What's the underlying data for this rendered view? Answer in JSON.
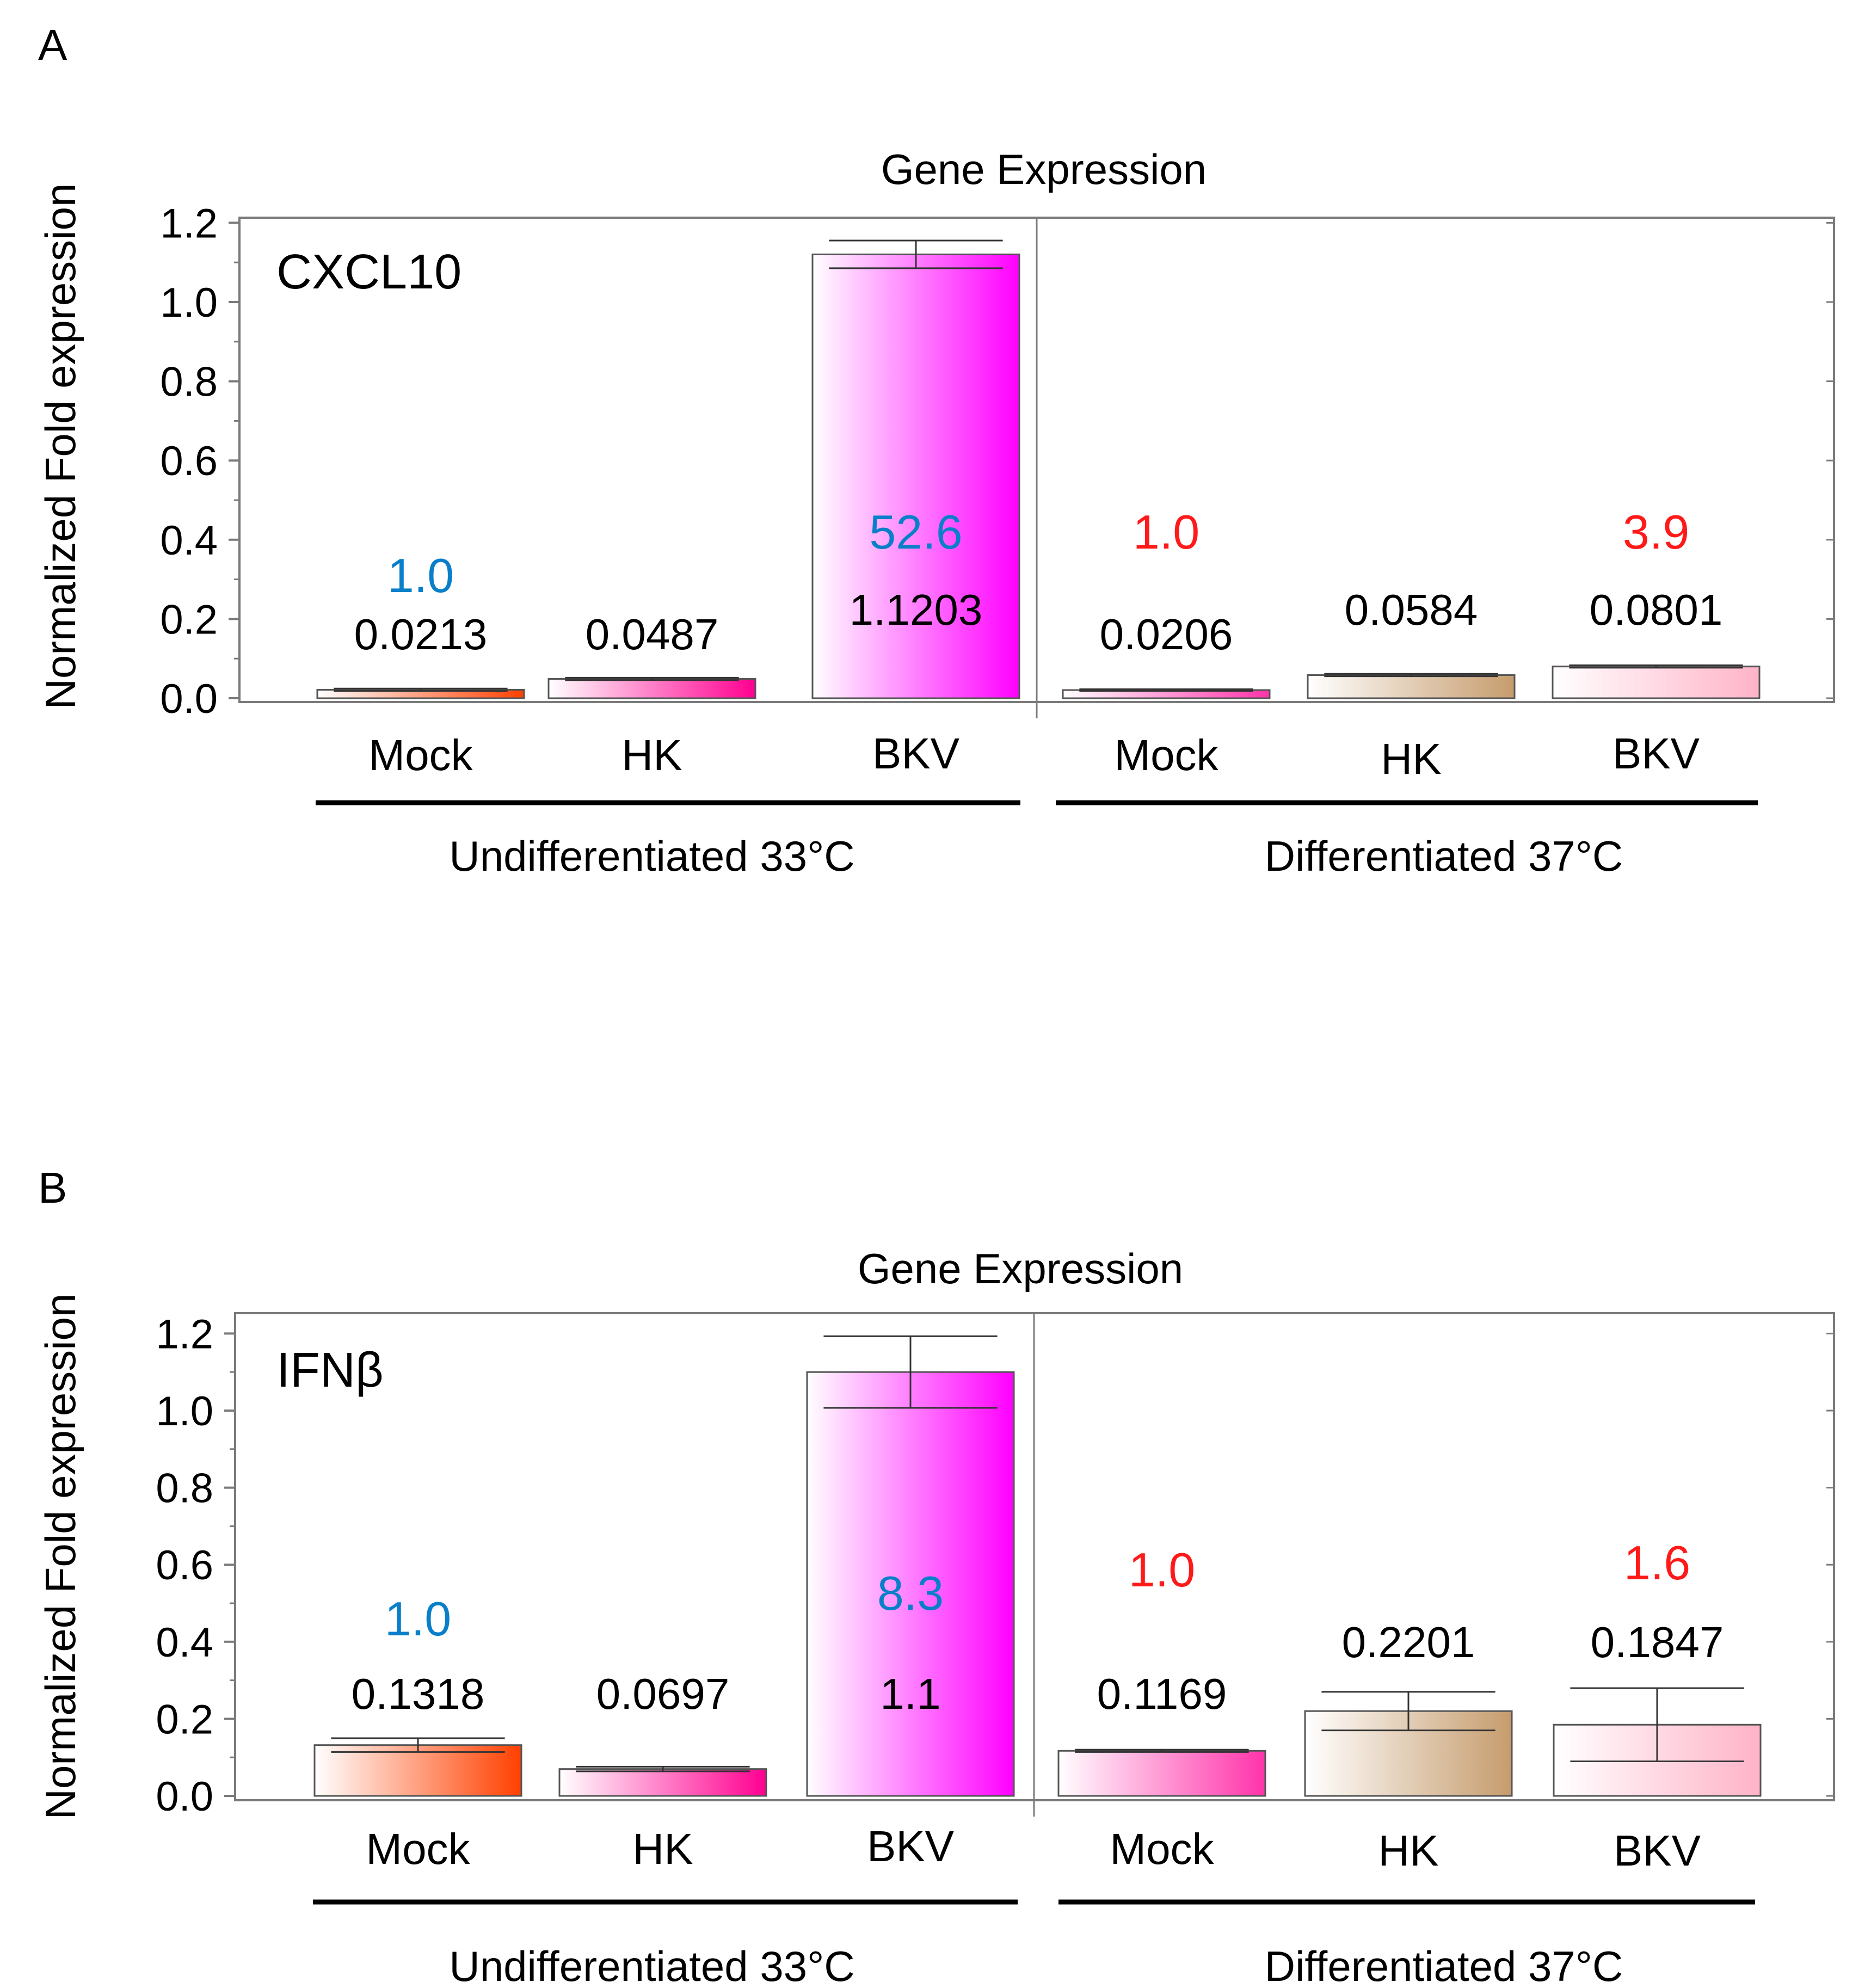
{
  "figure": {
    "panels": [
      {
        "panel_label": "A"
      },
      {
        "panel_label": "B"
      }
    ]
  },
  "chart_data": [
    {
      "type": "bar",
      "panel_label": "A",
      "title": "Gene Expression",
      "gene": "CXCL10",
      "ylabel": "Normalized Fold expression",
      "ylim": [
        0,
        1.25
      ],
      "yticks": [
        0.0,
        0.2,
        0.4,
        0.6,
        0.8,
        1.0,
        1.2
      ],
      "ytick_labels": [
        "0.0",
        "0.2",
        "0.4",
        "0.6",
        "0.8",
        "1.0",
        "1.2"
      ],
      "categories": [
        "Mock",
        "HK",
        "BKV",
        "Mock",
        "HK",
        "BKV"
      ],
      "values": [
        0.0213,
        0.0487,
        1.1203,
        0.0206,
        0.0584,
        0.0801
      ],
      "value_labels": [
        "0.0213",
        "0.0487",
        "1.1203",
        "0.0206",
        "0.0584",
        "0.0801"
      ],
      "errors": [
        0.003,
        0.003,
        0.035,
        0.002,
        0.003,
        0.003
      ],
      "fold_labels": [
        "1.0",
        "",
        "52.6",
        "1.0",
        "",
        "3.9"
      ],
      "fold_colors": [
        "#0a7fc9",
        "",
        "#0a7fc9",
        "#ff1a1a",
        "",
        "#ff1a1a"
      ],
      "bar_colors": [
        "#ff4000",
        "#ff0090",
        "#ff00ff",
        "#ff33aa",
        "#c69c6d",
        "#ffb3c8"
      ],
      "groups": [
        {
          "label": "Undifferentiated 33°C",
          "members": [
            0,
            1,
            2
          ]
        },
        {
          "label": "Differentiated 37°C",
          "members": [
            3,
            4,
            5
          ]
        }
      ]
    },
    {
      "type": "bar",
      "panel_label": "B",
      "title": "Gene Expression",
      "gene": "IFNβ",
      "ylabel": "Normalized Fold expression",
      "ylim": [
        0,
        1.25
      ],
      "yticks": [
        0.0,
        0.2,
        0.4,
        0.6,
        0.8,
        1.0,
        1.2
      ],
      "ytick_labels": [
        "0.0",
        "0.2",
        "0.4",
        "0.6",
        "0.8",
        "1.0",
        "1.2"
      ],
      "categories": [
        "Mock",
        "HK",
        "BKV",
        "Mock",
        "HK",
        "BKV"
      ],
      "values": [
        0.1318,
        0.0697,
        1.1,
        0.1169,
        0.2201,
        0.1847
      ],
      "value_labels": [
        "0.1318",
        "0.0697",
        "1.1",
        "0.1169",
        "0.2201",
        "0.1847"
      ],
      "errors": [
        0.018,
        0.006,
        0.093,
        0.003,
        0.05,
        0.095
      ],
      "fold_labels": [
        "1.0",
        "",
        "8.3",
        "1.0",
        "",
        "1.6"
      ],
      "fold_colors": [
        "#0a7fc9",
        "",
        "#0a7fc9",
        "#ff1a1a",
        "",
        "#ff1a1a"
      ],
      "bar_colors": [
        "#ff4000",
        "#ff0090",
        "#ff00ff",
        "#ff33aa",
        "#c69c6d",
        "#ffb3c8"
      ],
      "groups": [
        {
          "label": "Undifferentiated 33°C",
          "members": [
            0,
            1,
            2
          ]
        },
        {
          "label": "Differentiated 37°C",
          "members": [
            3,
            4,
            5
          ]
        }
      ]
    }
  ]
}
